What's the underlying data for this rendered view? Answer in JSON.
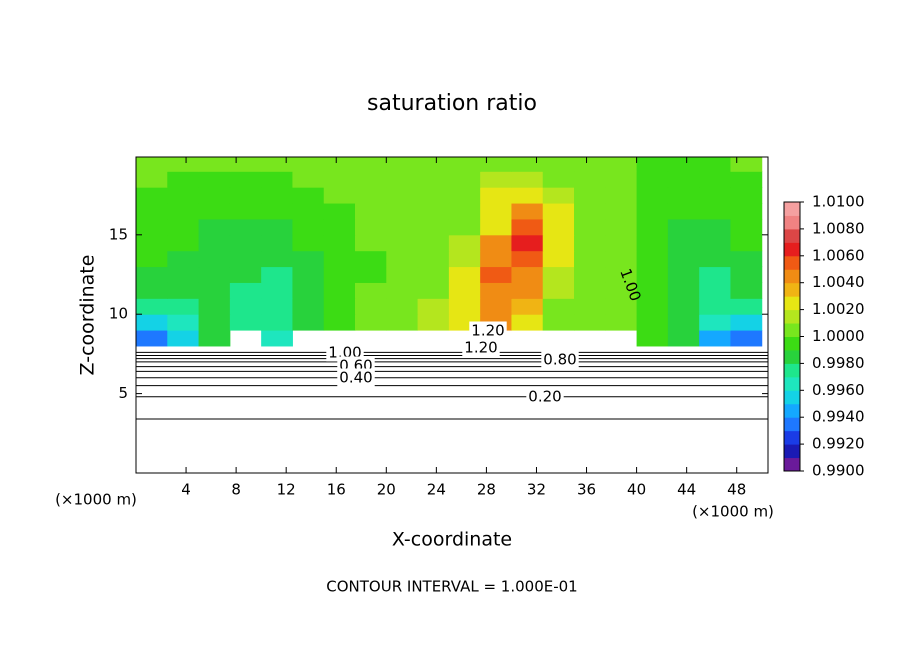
{
  "chart_data": {
    "type": "heatmap",
    "title": "saturation ratio",
    "x_label": "X-coordinate",
    "y_label": "Z-coordinate",
    "x_unit": "(×1000 m)",
    "y_unit": "(×1000 m)",
    "footnote": "CONTOUR INTERVAL = 1.000E-01",
    "xlim": [
      0,
      50.5
    ],
    "ylim": [
      0,
      19.9
    ],
    "xticks": [
      4,
      8,
      12,
      16,
      20,
      24,
      28,
      32,
      36,
      40,
      44,
      48
    ],
    "yticks": [
      5,
      10,
      15
    ],
    "x": [
      1.25,
      3.75,
      6.25,
      8.75,
      11.25,
      13.75,
      16.25,
      18.75,
      21.25,
      23.75,
      26.25,
      28.75,
      31.25,
      33.75,
      36.25,
      38.75,
      41.25,
      43.75,
      46.25,
      48.75
    ],
    "y": [
      8.5,
      9.5,
      10.5,
      11.5,
      12.5,
      13.5,
      14.5,
      15.5,
      16.5,
      17.5,
      18.5,
      19.5
    ],
    "z": [
      [
        0.9935,
        0.995,
        0.998,
        null,
        0.9965,
        null,
        null,
        null,
        null,
        null,
        null,
        null,
        null,
        null,
        null,
        null,
        0.999,
        0.998,
        0.9945,
        0.9935
      ],
      [
        0.995,
        0.9965,
        0.998,
        0.9975,
        0.997,
        0.9985,
        0.9995,
        1.0,
        1.001,
        1.0015,
        1.002,
        1.004,
        1.003,
        1.001,
        1.0005,
        1.0,
        0.9995,
        0.998,
        0.9965,
        0.995
      ],
      [
        0.997,
        0.9975,
        0.9985,
        0.9975,
        0.997,
        0.9985,
        0.9995,
        1.0,
        1.001,
        1.0015,
        1.002,
        1.0045,
        1.0035,
        1.001,
        1.0005,
        1.0,
        0.9995,
        0.998,
        0.997,
        0.9975
      ],
      [
        0.998,
        0.998,
        0.9985,
        0.9975,
        0.9972,
        0.9985,
        0.9995,
        1.0,
        1.0005,
        1.001,
        1.002,
        1.005,
        1.004,
        1.0015,
        1.0005,
        1.0,
        0.9995,
        0.998,
        0.9975,
        0.998
      ],
      [
        0.9985,
        0.9985,
        0.9985,
        0.998,
        0.9975,
        0.9985,
        0.9995,
        0.9998,
        1.0,
        1.001,
        1.002,
        1.0055,
        1.0045,
        1.0015,
        1.0005,
        1.0,
        0.9995,
        0.998,
        0.9978,
        0.9985
      ],
      [
        0.999,
        0.9985,
        0.9985,
        0.998,
        0.998,
        0.9988,
        0.9995,
        0.9998,
        1.0,
        1.001,
        1.0015,
        1.005,
        1.0055,
        1.002,
        1.0005,
        1.0,
        0.999,
        0.998,
        0.998,
        0.9985
      ],
      [
        0.9992,
        0.999,
        0.9985,
        0.9982,
        0.9985,
        0.999,
        0.9995,
        1.0,
        1.0,
        1.0005,
        1.0015,
        1.004,
        1.006,
        1.0025,
        1.0005,
        1.0,
        0.999,
        0.9982,
        0.9985,
        0.999
      ],
      [
        0.9995,
        0.9992,
        0.9988,
        0.9985,
        0.9988,
        0.9992,
        0.9995,
        1.0,
        1.0,
        1.0005,
        1.001,
        1.003,
        1.0055,
        1.0025,
        1.0005,
        1.0,
        0.999,
        0.9985,
        0.9988,
        0.9992
      ],
      [
        0.9995,
        0.9995,
        0.999,
        0.999,
        0.999,
        0.9995,
        0.9998,
        1.0,
        1.0,
        1.0005,
        1.001,
        1.0025,
        1.004,
        1.002,
        1.0005,
        1.0,
        0.9992,
        0.999,
        0.999,
        0.9995
      ],
      [
        0.9998,
        0.9995,
        0.9995,
        0.9995,
        0.9995,
        0.9998,
        1.0,
        1.0,
        1.0,
        1.0005,
        1.001,
        1.002,
        1.0025,
        1.0015,
        1.0005,
        1.0,
        0.9995,
        0.9992,
        0.9995,
        0.9995
      ],
      [
        1.0,
        0.9998,
        0.9998,
        0.9998,
        0.9998,
        1.0,
        1.0,
        1.0,
        1.0,
        1.0005,
        1.0008,
        1.0012,
        1.0015,
        1.001,
        1.0005,
        1.0,
        0.9998,
        0.9995,
        0.9995,
        0.9998
      ],
      [
        1.0,
        1.0,
        1.0,
        1.0,
        1.0,
        1.0,
        1.0,
        1.0,
        1.0,
        1.0,
        1.0005,
        1.0008,
        1.001,
        1.0008,
        1.0005,
        1.0,
        0.9998,
        0.9998,
        0.9998,
        1.0
      ]
    ],
    "clim": [
      0.99,
      1.01
    ],
    "colors": [
      "#6a1a9a",
      "#1a1ab4",
      "#1a3ce6",
      "#1e78ff",
      "#14a8ff",
      "#14d2e6",
      "#1ee6be",
      "#1ee68c",
      "#28d23c",
      "#3cdc14",
      "#78e61e",
      "#b4e61e",
      "#e6e614",
      "#f0b414",
      "#f08c14",
      "#f05a14",
      "#e61e1e",
      "#dc4646",
      "#f08282",
      "#f5a0a0"
    ],
    "cticks": [
      {
        "value": 0.99,
        "label": "0.9900"
      },
      {
        "value": 0.992,
        "label": "0.9920"
      },
      {
        "value": 0.994,
        "label": "0.9940"
      },
      {
        "value": 0.996,
        "label": "0.9960"
      },
      {
        "value": 0.998,
        "label": "0.9980"
      },
      {
        "value": 1.0,
        "label": "1.0000"
      },
      {
        "value": 1.002,
        "label": "1.0020"
      },
      {
        "value": 1.004,
        "label": "1.0040"
      },
      {
        "value": 1.006,
        "label": "1.0060"
      },
      {
        "value": 1.008,
        "label": "1.0080"
      },
      {
        "value": 1.01,
        "label": "1.0100"
      }
    ],
    "contours": [
      {
        "level": 0.1,
        "z": 3.4
      },
      {
        "level": 0.2,
        "z": 4.8
      },
      {
        "level": 0.3,
        "z": 5.5
      },
      {
        "level": 0.4,
        "z": 6.0
      },
      {
        "level": 0.5,
        "z": 6.4
      },
      {
        "level": 0.6,
        "z": 6.7
      },
      {
        "level": 0.7,
        "z": 7.0
      },
      {
        "level": 0.8,
        "z": 7.2
      },
      {
        "level": 0.9,
        "z": 7.4
      },
      {
        "level": 1.0,
        "z": 7.6
      }
    ],
    "contour_labels": [
      "1.20",
      "1.20",
      "1.00",
      "0.60",
      "0.40",
      "0.80",
      "0.20",
      "1.00"
    ]
  }
}
